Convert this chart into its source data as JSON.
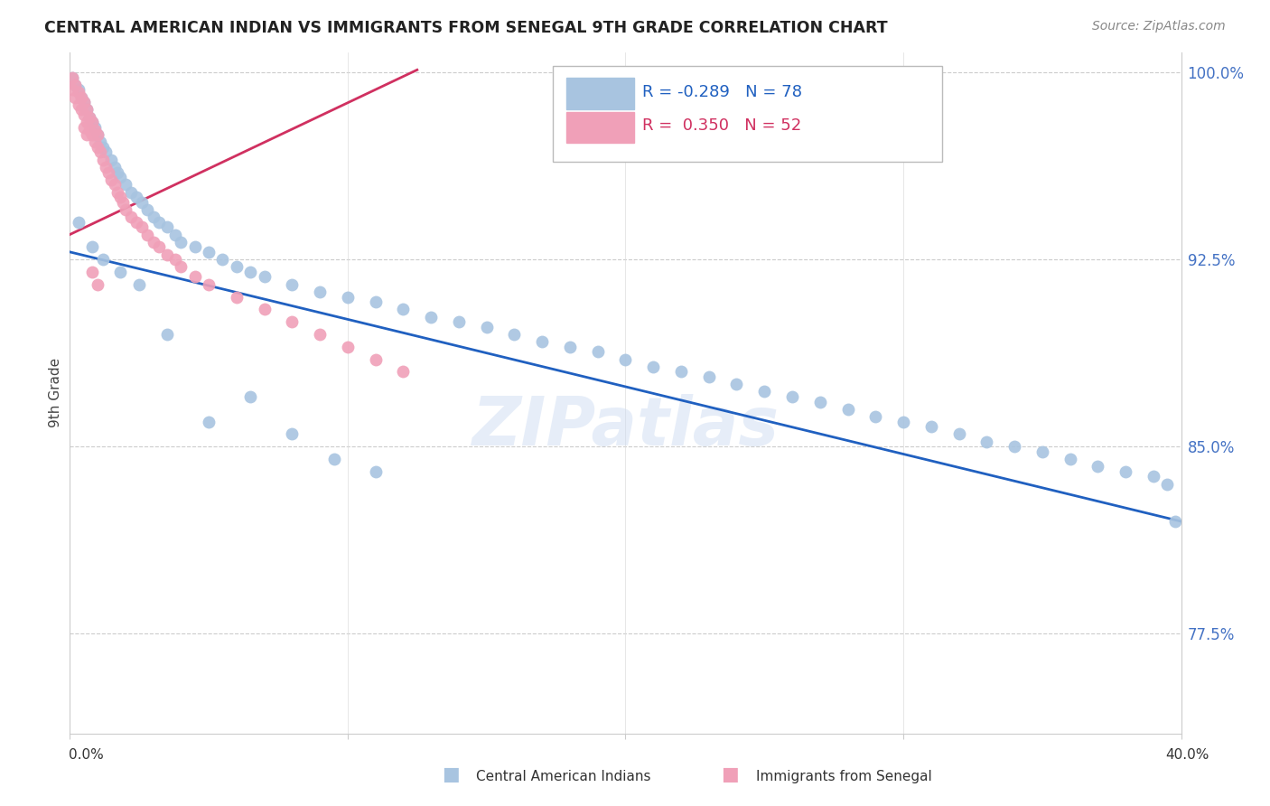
{
  "title": "CENTRAL AMERICAN INDIAN VS IMMIGRANTS FROM SENEGAL 9TH GRADE CORRELATION CHART",
  "source": "Source: ZipAtlas.com",
  "ylabel": "9th Grade",
  "xmin": 0.0,
  "xmax": 0.4,
  "ymin": 0.735,
  "ymax": 1.008,
  "yticks": [
    0.775,
    0.85,
    0.925,
    1.0
  ],
  "ytick_labels": [
    "77.5%",
    "85.0%",
    "92.5%",
    "100.0%"
  ],
  "blue_color": "#a8c4e0",
  "pink_color": "#f0a0b8",
  "blue_line_color": "#2060c0",
  "pink_line_color": "#d03060",
  "watermark": "ZIPatlas",
  "blue_x": [
    0.001,
    0.002,
    0.003,
    0.004,
    0.005,
    0.006,
    0.007,
    0.008,
    0.009,
    0.01,
    0.011,
    0.012,
    0.013,
    0.015,
    0.016,
    0.017,
    0.018,
    0.02,
    0.022,
    0.024,
    0.026,
    0.028,
    0.03,
    0.032,
    0.035,
    0.038,
    0.04,
    0.045,
    0.05,
    0.055,
    0.06,
    0.065,
    0.07,
    0.08,
    0.09,
    0.1,
    0.11,
    0.12,
    0.13,
    0.14,
    0.15,
    0.16,
    0.17,
    0.18,
    0.19,
    0.2,
    0.21,
    0.22,
    0.23,
    0.24,
    0.25,
    0.26,
    0.27,
    0.28,
    0.29,
    0.3,
    0.31,
    0.32,
    0.33,
    0.34,
    0.35,
    0.36,
    0.37,
    0.38,
    0.39,
    0.395,
    0.398,
    0.003,
    0.008,
    0.012,
    0.018,
    0.025,
    0.035,
    0.05,
    0.065,
    0.08,
    0.095,
    0.11
  ],
  "blue_y": [
    0.998,
    0.995,
    0.993,
    0.99,
    0.988,
    0.985,
    0.982,
    0.98,
    0.978,
    0.975,
    0.972,
    0.97,
    0.968,
    0.965,
    0.962,
    0.96,
    0.958,
    0.955,
    0.952,
    0.95,
    0.948,
    0.945,
    0.942,
    0.94,
    0.938,
    0.935,
    0.932,
    0.93,
    0.928,
    0.925,
    0.922,
    0.92,
    0.918,
    0.915,
    0.912,
    0.91,
    0.908,
    0.905,
    0.902,
    0.9,
    0.898,
    0.895,
    0.892,
    0.89,
    0.888,
    0.885,
    0.882,
    0.88,
    0.878,
    0.875,
    0.872,
    0.87,
    0.868,
    0.865,
    0.862,
    0.86,
    0.858,
    0.855,
    0.852,
    0.85,
    0.848,
    0.845,
    0.842,
    0.84,
    0.838,
    0.835,
    0.82,
    0.94,
    0.93,
    0.925,
    0.92,
    0.915,
    0.895,
    0.86,
    0.87,
    0.855,
    0.845,
    0.84
  ],
  "pink_x": [
    0.001,
    0.001,
    0.002,
    0.002,
    0.003,
    0.003,
    0.004,
    0.004,
    0.005,
    0.005,
    0.005,
    0.006,
    0.006,
    0.006,
    0.007,
    0.007,
    0.008,
    0.008,
    0.009,
    0.009,
    0.01,
    0.01,
    0.011,
    0.012,
    0.013,
    0.014,
    0.015,
    0.016,
    0.017,
    0.018,
    0.019,
    0.02,
    0.022,
    0.024,
    0.026,
    0.028,
    0.03,
    0.032,
    0.035,
    0.038,
    0.04,
    0.045,
    0.05,
    0.06,
    0.07,
    0.08,
    0.09,
    0.1,
    0.11,
    0.12,
    0.008,
    0.01
  ],
  "pink_y": [
    0.998,
    0.993,
    0.995,
    0.99,
    0.992,
    0.987,
    0.99,
    0.985,
    0.988,
    0.983,
    0.978,
    0.985,
    0.98,
    0.975,
    0.982,
    0.977,
    0.98,
    0.975,
    0.977,
    0.972,
    0.975,
    0.97,
    0.968,
    0.965,
    0.962,
    0.96,
    0.957,
    0.955,
    0.952,
    0.95,
    0.948,
    0.945,
    0.942,
    0.94,
    0.938,
    0.935,
    0.932,
    0.93,
    0.927,
    0.925,
    0.922,
    0.918,
    0.915,
    0.91,
    0.905,
    0.9,
    0.895,
    0.89,
    0.885,
    0.88,
    0.92,
    0.915
  ],
  "blue_trend_x": [
    0.0,
    0.4
  ],
  "blue_trend_y": [
    0.928,
    0.82
  ],
  "pink_trend_x": [
    0.0,
    0.125
  ],
  "pink_trend_y": [
    0.935,
    1.001
  ]
}
